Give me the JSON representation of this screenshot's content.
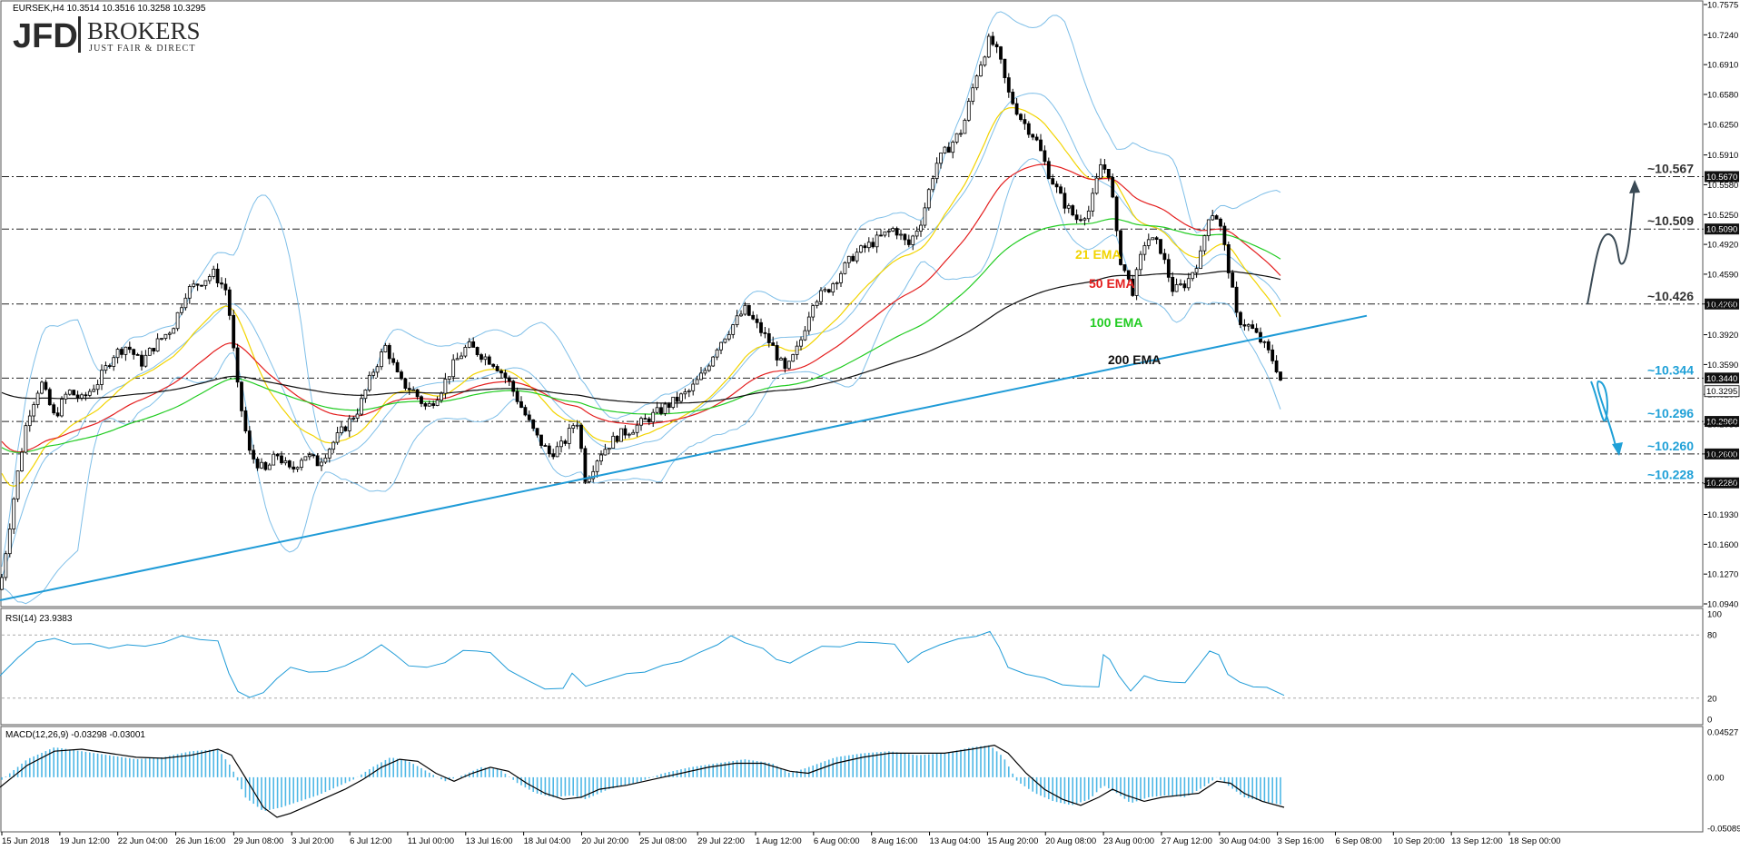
{
  "symbol_info": "EURSEK,H4  10.3514 10.3516 10.3258 10.3295",
  "logo": {
    "brand": "JFD",
    "name": "BROKERS",
    "tagline": "JUST FAIR & DIRECT"
  },
  "chart_data": {
    "type": "candlestick",
    "main_axis": {
      "ylim": [
        10.094,
        10.7575
      ],
      "ticks": [
        "10.7575",
        "10.7240",
        "10.6910",
        "10.6580",
        "10.6250",
        "10.5910",
        "10.5580",
        "10.5250",
        "10.4920",
        "10.4590",
        "10.4260",
        "10.3920",
        "10.3590",
        "10.3260",
        "10.2930",
        "10.2600",
        "10.2270",
        "10.1930",
        "10.1600",
        "10.1270",
        "10.0940"
      ],
      "current_price": "10.3295"
    },
    "x_labels": [
      "15 Jun 2018",
      "19 Jun 12:00",
      "22 Jun 04:00",
      "26 Jun 16:00",
      "29 Jun 08:00",
      "3 Jul 20:00",
      "6 Jul 12:00",
      "11 Jul 00:00",
      "13 Jul 16:00",
      "18 Jul 04:00",
      "20 Jul 20:00",
      "25 Jul 08:00",
      "29 Jul 22:00",
      "1 Aug 12:00",
      "6 Aug 00:00",
      "8 Aug 16:00",
      "13 Aug 04:00",
      "15 Aug 20:00",
      "20 Aug 08:00",
      "23 Aug 00:00",
      "27 Aug 12:00",
      "30 Aug 04:00",
      "3 Sep 16:00",
      "6 Sep 08:00",
      "10 Sep 20:00",
      "13 Sep 12:00",
      "18 Sep 00:00"
    ],
    "price_path": [
      [
        0,
        10.11
      ],
      [
        18,
        10.23
      ],
      [
        30,
        10.3
      ],
      [
        45,
        10.34
      ],
      [
        60,
        10.3
      ],
      [
        75,
        10.33
      ],
      [
        90,
        10.32
      ],
      [
        108,
        10.34
      ],
      [
        125,
        10.37
      ],
      [
        140,
        10.38
      ],
      [
        155,
        10.36
      ],
      [
        170,
        10.38
      ],
      [
        190,
        10.4
      ],
      [
        205,
        10.44
      ],
      [
        220,
        10.45
      ],
      [
        235,
        10.46
      ],
      [
        250,
        10.44
      ],
      [
        262,
        10.33
      ],
      [
        275,
        10.26
      ],
      [
        292,
        10.24
      ],
      [
        305,
        10.26
      ],
      [
        320,
        10.24
      ],
      [
        335,
        10.26
      ],
      [
        350,
        10.25
      ],
      [
        365,
        10.27
      ],
      [
        380,
        10.29
      ],
      [
        395,
        10.31
      ],
      [
        410,
        10.35
      ],
      [
        425,
        10.38
      ],
      [
        440,
        10.34
      ],
      [
        455,
        10.33
      ],
      [
        470,
        10.31
      ],
      [
        485,
        10.33
      ],
      [
        500,
        10.36
      ],
      [
        515,
        10.38
      ],
      [
        530,
        10.37
      ],
      [
        545,
        10.36
      ],
      [
        560,
        10.34
      ],
      [
        575,
        10.31
      ],
      [
        590,
        10.28
      ],
      [
        605,
        10.26
      ],
      [
        620,
        10.27
      ],
      [
        635,
        10.3
      ],
      [
        645,
        10.23
      ],
      [
        660,
        10.26
      ],
      [
        680,
        10.28
      ],
      [
        700,
        10.29
      ],
      [
        715,
        10.3
      ],
      [
        730,
        10.31
      ],
      [
        745,
        10.32
      ],
      [
        760,
        10.33
      ],
      [
        775,
        10.35
      ],
      [
        790,
        10.38
      ],
      [
        805,
        10.4
      ],
      [
        820,
        10.42
      ],
      [
        835,
        10.4
      ],
      [
        850,
        10.38
      ],
      [
        865,
        10.35
      ],
      [
        880,
        10.38
      ],
      [
        895,
        10.43
      ],
      [
        910,
        10.44
      ],
      [
        925,
        10.46
      ],
      [
        940,
        10.48
      ],
      [
        955,
        10.49
      ],
      [
        970,
        10.5
      ],
      [
        985,
        10.51
      ],
      [
        1000,
        10.49
      ],
      [
        1015,
        10.52
      ],
      [
        1030,
        10.58
      ],
      [
        1045,
        10.6
      ],
      [
        1060,
        10.62
      ],
      [
        1075,
        10.68
      ],
      [
        1090,
        10.72
      ],
      [
        1100,
        10.7
      ],
      [
        1110,
        10.66
      ],
      [
        1125,
        10.63
      ],
      [
        1140,
        10.61
      ],
      [
        1155,
        10.57
      ],
      [
        1170,
        10.54
      ],
      [
        1185,
        10.52
      ],
      [
        1200,
        10.53
      ],
      [
        1212,
        10.58
      ],
      [
        1222,
        10.57
      ],
      [
        1232,
        10.48
      ],
      [
        1247,
        10.44
      ],
      [
        1262,
        10.5
      ],
      [
        1277,
        10.49
      ],
      [
        1292,
        10.44
      ],
      [
        1307,
        10.45
      ],
      [
        1322,
        10.48
      ],
      [
        1332,
        10.53
      ],
      [
        1342,
        10.52
      ],
      [
        1352,
        10.47
      ],
      [
        1362,
        10.41
      ],
      [
        1377,
        10.4
      ],
      [
        1392,
        10.38
      ],
      [
        1404,
        10.36
      ],
      [
        1414,
        10.33
      ]
    ],
    "series": [
      {
        "name": "21 EMA",
        "color": "#f2d400"
      },
      {
        "name": "50 EMA",
        "color": "#e41f1f"
      },
      {
        "name": "100 EMA",
        "color": "#22cc22"
      },
      {
        "name": "200 EMA",
        "color": "#111111"
      },
      {
        "name": "Bollinger Bands",
        "color": "#7fbfe8"
      }
    ],
    "levels": [
      {
        "value": 10.567,
        "label": "~10.567",
        "tag": "10.5670"
      },
      {
        "value": 10.509,
        "label": "~10.509",
        "tag": "10.5090"
      },
      {
        "value": 10.426,
        "label": "~10.426",
        "tag": "10.4260"
      },
      {
        "value": 10.344,
        "label": "~10.344",
        "tag": "10.3440"
      },
      {
        "value": 10.296,
        "label": "~10.296",
        "tag": "10.2960"
      },
      {
        "value": 10.26,
        "label": "~10.260",
        "tag": "10.2600"
      },
      {
        "value": 10.228,
        "label": "~10.228",
        "tag": "10.2280"
      }
    ],
    "trendline": {
      "from": [
        0,
        10.098
      ],
      "to": [
        1505,
        10.413
      ],
      "color": "#1f9bd7"
    },
    "rsi": {
      "label": "RSI(14) 23.9383",
      "ylim": [
        0,
        100
      ],
      "ticks": [
        "100",
        "80",
        "20",
        "0"
      ],
      "path": [
        [
          0,
          40
        ],
        [
          20,
          60
        ],
        [
          40,
          72
        ],
        [
          60,
          78
        ],
        [
          80,
          70
        ],
        [
          100,
          73
        ],
        [
          120,
          66
        ],
        [
          140,
          72
        ],
        [
          160,
          68
        ],
        [
          180,
          74
        ],
        [
          200,
          78
        ],
        [
          220,
          77
        ],
        [
          240,
          73
        ],
        [
          252,
          45
        ],
        [
          262,
          25
        ],
        [
          275,
          22
        ],
        [
          290,
          24
        ],
        [
          305,
          40
        ],
        [
          320,
          48
        ],
        [
          340,
          46
        ],
        [
          360,
          44
        ],
        [
          380,
          52
        ],
        [
          400,
          58
        ],
        [
          420,
          72
        ],
        [
          435,
          60
        ],
        [
          450,
          52
        ],
        [
          470,
          48
        ],
        [
          490,
          55
        ],
        [
          510,
          64
        ],
        [
          525,
          66
        ],
        [
          540,
          62
        ],
        [
          560,
          48
        ],
        [
          580,
          36
        ],
        [
          600,
          30
        ],
        [
          620,
          28
        ],
        [
          630,
          45
        ],
        [
          645,
          30
        ],
        [
          665,
          38
        ],
        [
          690,
          42
        ],
        [
          710,
          46
        ],
        [
          730,
          50
        ],
        [
          750,
          56
        ],
        [
          770,
          62
        ],
        [
          790,
          72
        ],
        [
          805,
          78
        ],
        [
          820,
          74
        ],
        [
          840,
          66
        ],
        [
          855,
          58
        ],
        [
          870,
          52
        ],
        [
          885,
          62
        ],
        [
          905,
          68
        ],
        [
          925,
          70
        ],
        [
          945,
          72
        ],
        [
          965,
          74
        ],
        [
          985,
          70
        ],
        [
          1000,
          55
        ],
        [
          1015,
          62
        ],
        [
          1035,
          72
        ],
        [
          1055,
          75
        ],
        [
          1075,
          80
        ],
        [
          1090,
          82
        ],
        [
          1100,
          70
        ],
        [
          1110,
          48
        ],
        [
          1130,
          44
        ],
        [
          1150,
          38
        ],
        [
          1170,
          34
        ],
        [
          1190,
          30
        ],
        [
          1210,
          32
        ],
        [
          1215,
          60
        ],
        [
          1222,
          58
        ],
        [
          1232,
          40
        ],
        [
          1245,
          28
        ],
        [
          1260,
          40
        ],
        [
          1275,
          38
        ],
        [
          1290,
          34
        ],
        [
          1305,
          36
        ],
        [
          1320,
          50
        ],
        [
          1332,
          66
        ],
        [
          1342,
          60
        ],
        [
          1352,
          44
        ],
        [
          1365,
          34
        ],
        [
          1380,
          32
        ],
        [
          1395,
          29
        ],
        [
          1414,
          24
        ]
      ]
    },
    "macd": {
      "label": "MACD(12,26,9) -0.03298 -0.03001",
      "ylim": [
        -0.05089,
        0.04527
      ],
      "ticks": [
        "0.04527",
        "0.00",
        "-0.05089"
      ],
      "hist": [
        [
          0,
          -0.004
        ],
        [
          30,
          0.018
        ],
        [
          60,
          0.03
        ],
        [
          90,
          0.026
        ],
        [
          120,
          0.022
        ],
        [
          150,
          0.018
        ],
        [
          180,
          0.02
        ],
        [
          210,
          0.026
        ],
        [
          240,
          0.028
        ],
        [
          255,
          0.01
        ],
        [
          270,
          -0.02
        ],
        [
          290,
          -0.034
        ],
        [
          310,
          -0.03
        ],
        [
          330,
          -0.024
        ],
        [
          350,
          -0.018
        ],
        [
          370,
          -0.01
        ],
        [
          390,
          -0.002
        ],
        [
          410,
          0.01
        ],
        [
          430,
          0.02
        ],
        [
          450,
          0.016
        ],
        [
          470,
          0.006
        ],
        [
          490,
          -0.004
        ],
        [
          510,
          0.002
        ],
        [
          530,
          0.01
        ],
        [
          550,
          0.008
        ],
        [
          570,
          -0.006
        ],
        [
          590,
          -0.016
        ],
        [
          610,
          -0.02
        ],
        [
          630,
          -0.018
        ],
        [
          645,
          -0.022
        ],
        [
          670,
          -0.012
        ],
        [
          700,
          -0.006
        ],
        [
          730,
          0.004
        ],
        [
          760,
          0.01
        ],
        [
          790,
          0.014
        ],
        [
          820,
          0.018
        ],
        [
          850,
          0.014
        ],
        [
          870,
          0.004
        ],
        [
          890,
          0.01
        ],
        [
          920,
          0.02
        ],
        [
          950,
          0.024
        ],
        [
          980,
          0.026
        ],
        [
          1010,
          0.022
        ],
        [
          1040,
          0.024
        ],
        [
          1070,
          0.03
        ],
        [
          1090,
          0.032
        ],
        [
          1105,
          0.02
        ],
        [
          1120,
          -0.004
        ],
        [
          1140,
          -0.016
        ],
        [
          1160,
          -0.024
        ],
        [
          1180,
          -0.028
        ],
        [
          1200,
          -0.022
        ],
        [
          1215,
          -0.008
        ],
        [
          1230,
          -0.016
        ],
        [
          1245,
          -0.026
        ],
        [
          1265,
          -0.02
        ],
        [
          1285,
          -0.018
        ],
        [
          1305,
          -0.02
        ],
        [
          1325,
          -0.01
        ],
        [
          1340,
          0.0
        ],
        [
          1355,
          -0.01
        ],
        [
          1370,
          -0.02
        ],
        [
          1390,
          -0.024
        ],
        [
          1414,
          -0.028
        ]
      ],
      "line": [
        [
          0,
          -0.01
        ],
        [
          30,
          0.012
        ],
        [
          60,
          0.026
        ],
        [
          90,
          0.028
        ],
        [
          120,
          0.024
        ],
        [
          150,
          0.02
        ],
        [
          180,
          0.019
        ],
        [
          210,
          0.022
        ],
        [
          240,
          0.028
        ],
        [
          255,
          0.022
        ],
        [
          270,
          0.0
        ],
        [
          290,
          -0.03
        ],
        [
          305,
          -0.04
        ],
        [
          320,
          -0.036
        ],
        [
          340,
          -0.028
        ],
        [
          360,
          -0.02
        ],
        [
          380,
          -0.012
        ],
        [
          400,
          -0.002
        ],
        [
          420,
          0.01
        ],
        [
          440,
          0.018
        ],
        [
          460,
          0.016
        ],
        [
          480,
          0.004
        ],
        [
          500,
          -0.004
        ],
        [
          520,
          0.004
        ],
        [
          540,
          0.01
        ],
        [
          560,
          0.006
        ],
        [
          580,
          -0.006
        ],
        [
          600,
          -0.016
        ],
        [
          620,
          -0.022
        ],
        [
          640,
          -0.02
        ],
        [
          660,
          -0.012
        ],
        [
          690,
          -0.008
        ],
        [
          720,
          -0.002
        ],
        [
          750,
          0.004
        ],
        [
          780,
          0.01
        ],
        [
          810,
          0.014
        ],
        [
          840,
          0.014
        ],
        [
          870,
          0.006
        ],
        [
          890,
          0.004
        ],
        [
          920,
          0.014
        ],
        [
          950,
          0.02
        ],
        [
          980,
          0.024
        ],
        [
          1010,
          0.024
        ],
        [
          1040,
          0.024
        ],
        [
          1070,
          0.028
        ],
        [
          1095,
          0.032
        ],
        [
          1110,
          0.024
        ],
        [
          1130,
          0.004
        ],
        [
          1150,
          -0.012
        ],
        [
          1170,
          -0.022
        ],
        [
          1190,
          -0.028
        ],
        [
          1210,
          -0.02
        ],
        [
          1225,
          -0.012
        ],
        [
          1240,
          -0.018
        ],
        [
          1260,
          -0.024
        ],
        [
          1280,
          -0.02
        ],
        [
          1300,
          -0.018
        ],
        [
          1320,
          -0.016
        ],
        [
          1340,
          -0.004
        ],
        [
          1355,
          -0.006
        ],
        [
          1370,
          -0.016
        ],
        [
          1390,
          -0.024
        ],
        [
          1414,
          -0.03
        ]
      ]
    }
  }
}
